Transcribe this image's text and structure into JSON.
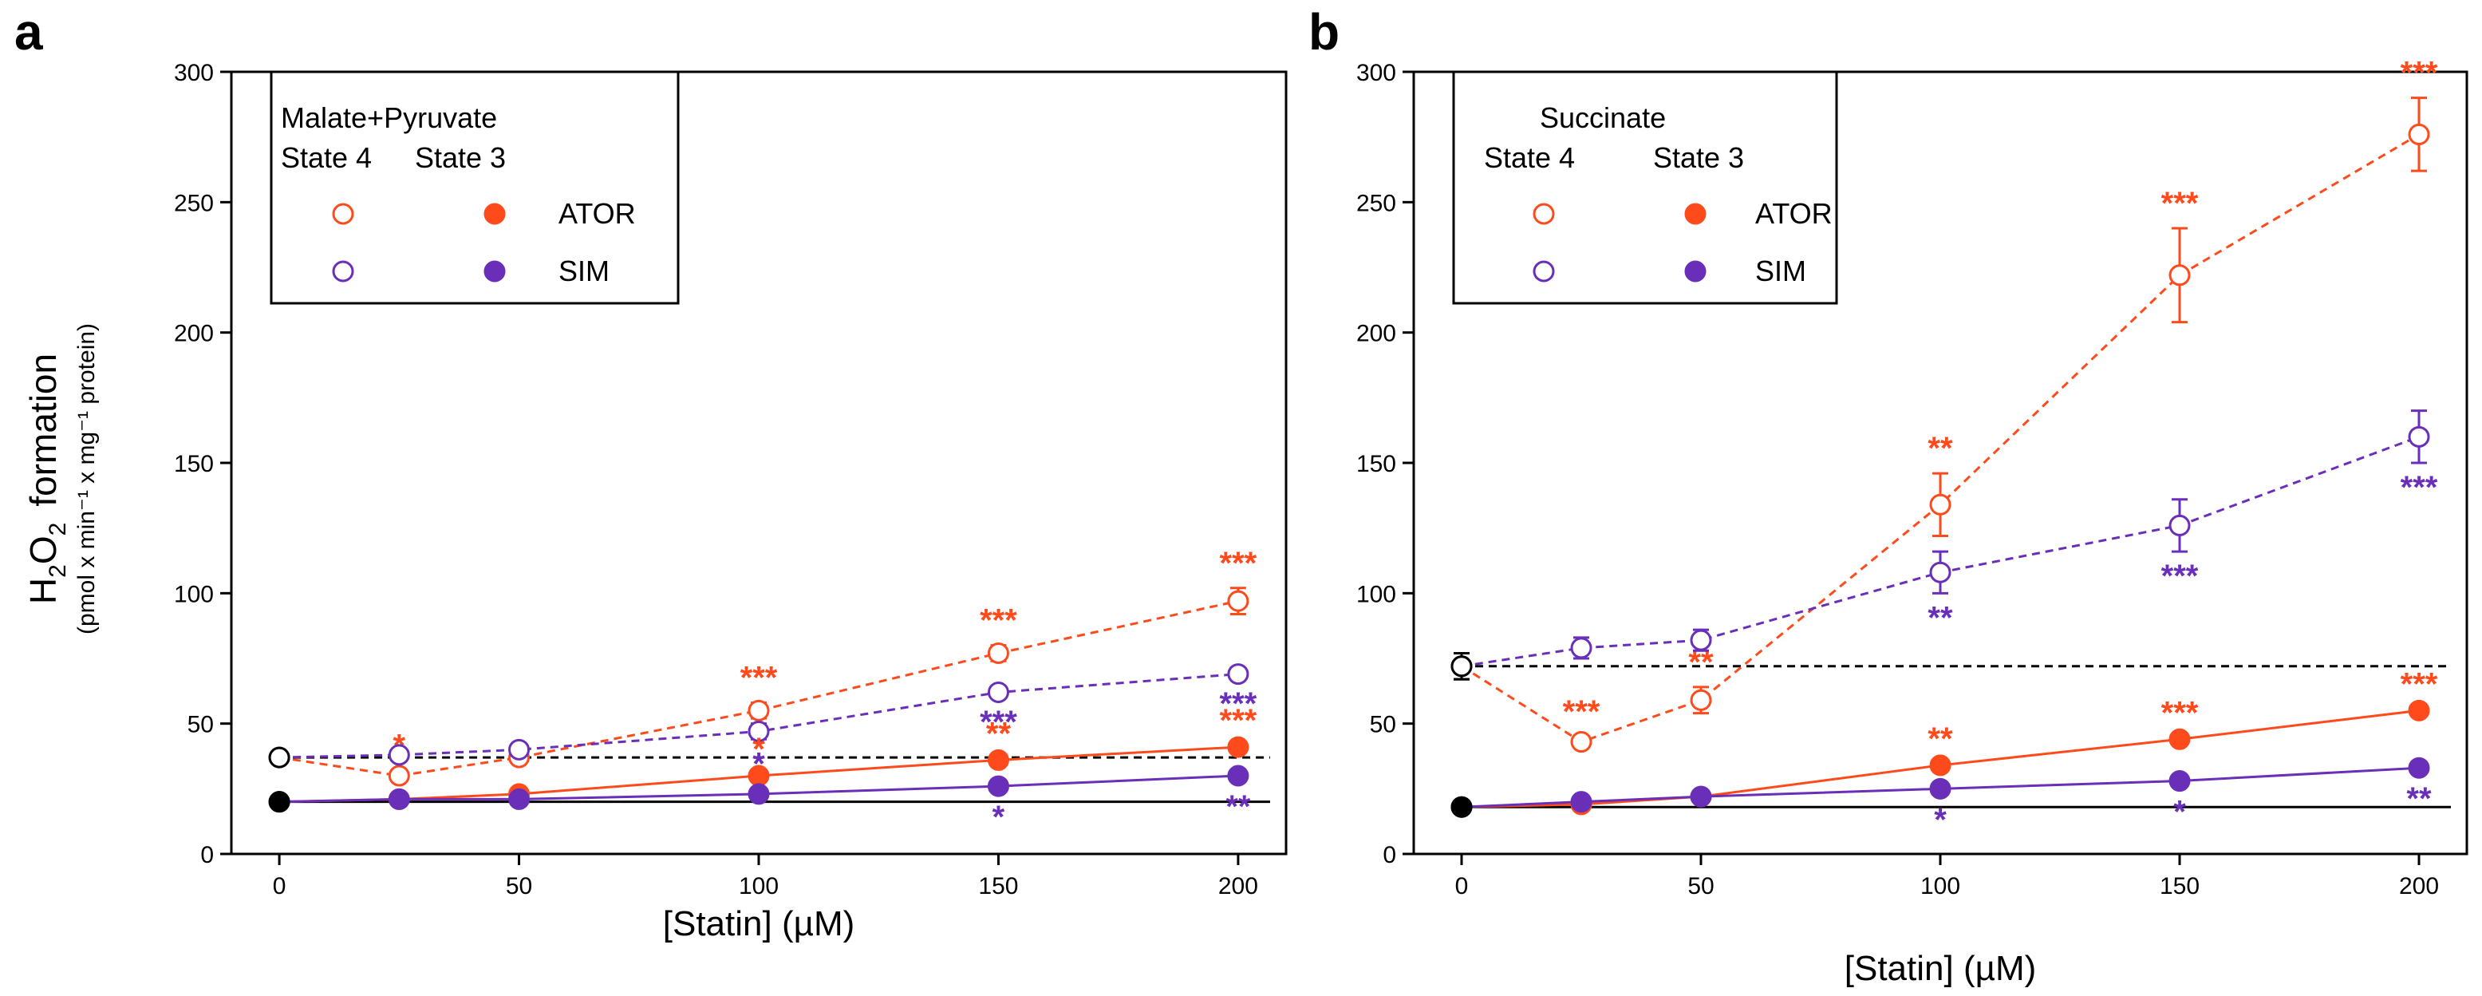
{
  "colors": {
    "ator": "#ff4a1c",
    "sim": "#6a2fb8",
    "control": "#000000"
  },
  "shared_axes": {
    "xlabel": "[Statin] (µM)",
    "ylabel_main_pre": "H",
    "ylabel_main_sub": "2",
    "ylabel_main_mid": "O",
    "ylabel_main_sub2": "2",
    "ylabel_main_post": "formation",
    "ylabel_units": "(pmol x min⁻¹ x mg⁻¹ protein)",
    "xlim": [
      -10,
      210
    ],
    "ylim": [
      0,
      300
    ],
    "xticks": [
      0,
      50,
      100,
      150,
      200
    ],
    "yticks": [
      0,
      50,
      100,
      150,
      200,
      250,
      300
    ]
  },
  "chart_data": [
    {
      "panel": "a",
      "type": "line",
      "legend": {
        "title": "Malate+Pyruvate",
        "col_state4": "State 4",
        "col_state3": "State 3",
        "entry_ator": "ATOR",
        "entry_sim": "SIM"
      },
      "control_state4": 37,
      "control_state3": 20,
      "series": [
        {
          "name": "ATOR State 4",
          "drug": "ator",
          "state": 4,
          "x": [
            0,
            25,
            50,
            100,
            150,
            200
          ],
          "y": [
            37,
            30,
            37,
            55,
            77,
            97
          ],
          "err": [
            2,
            2,
            2,
            3,
            3,
            5
          ],
          "stars": [
            "",
            "*",
            "",
            "***",
            "***",
            "***"
          ]
        },
        {
          "name": "SIM State 4",
          "drug": "sim",
          "state": 4,
          "x": [
            0,
            25,
            50,
            100,
            150,
            200
          ],
          "y": [
            37,
            38,
            40,
            47,
            62,
            69
          ],
          "err": [
            2,
            2,
            2,
            3,
            2,
            2
          ],
          "stars": [
            "",
            "",
            "",
            "*",
            "***",
            "***"
          ]
        },
        {
          "name": "ATOR State 3",
          "drug": "ator",
          "state": 3,
          "x": [
            0,
            25,
            50,
            100,
            150,
            200
          ],
          "y": [
            20,
            21,
            23,
            30,
            36,
            41
          ],
          "err": [
            1,
            1,
            1,
            1,
            1,
            1
          ],
          "stars": [
            "",
            "",
            "",
            "*",
            "**",
            "***"
          ]
        },
        {
          "name": "SIM State 3",
          "drug": "sim",
          "state": 3,
          "x": [
            0,
            25,
            50,
            100,
            150,
            200
          ],
          "y": [
            20,
            21,
            21,
            23,
            26,
            30
          ],
          "err": [
            1,
            1,
            1,
            1,
            1,
            1
          ],
          "stars": [
            "",
            "",
            "",
            "",
            "*",
            "**"
          ]
        }
      ]
    },
    {
      "panel": "b",
      "type": "line",
      "legend": {
        "title": "Succinate",
        "col_state4": "State 4",
        "col_state3": "State 3",
        "entry_ator": "ATOR",
        "entry_sim": "SIM"
      },
      "control_state4": 72,
      "control_state3": 18,
      "series": [
        {
          "name": "ATOR State 4",
          "drug": "ator",
          "state": 4,
          "x": [
            0,
            25,
            50,
            100,
            150,
            200
          ],
          "y": [
            72,
            43,
            59,
            134,
            222,
            276
          ],
          "err": [
            5,
            2,
            5,
            12,
            18,
            14
          ],
          "stars": [
            "",
            "***",
            "**",
            "**",
            "***",
            "***"
          ]
        },
        {
          "name": "SIM State 4",
          "drug": "sim",
          "state": 4,
          "x": [
            0,
            25,
            50,
            100,
            150,
            200
          ],
          "y": [
            72,
            79,
            82,
            108,
            126,
            160
          ],
          "err": [
            5,
            4,
            4,
            8,
            10,
            10
          ],
          "stars": [
            "",
            "",
            "",
            "**",
            "***",
            "***"
          ]
        },
        {
          "name": "ATOR State 3",
          "drug": "ator",
          "state": 3,
          "x": [
            0,
            25,
            50,
            100,
            150,
            200
          ],
          "y": [
            18,
            19,
            22,
            34,
            44,
            55
          ],
          "err": [
            1,
            1,
            1,
            1,
            1,
            1
          ],
          "stars": [
            "",
            "",
            "",
            "**",
            "***",
            "***"
          ]
        },
        {
          "name": "SIM State 3",
          "drug": "sim",
          "state": 3,
          "x": [
            0,
            25,
            50,
            100,
            150,
            200
          ],
          "y": [
            18,
            20,
            22,
            25,
            28,
            33
          ],
          "err": [
            1,
            1,
            1,
            1,
            1,
            1
          ],
          "stars": [
            "",
            "",
            "",
            "*",
            "*",
            "**"
          ]
        }
      ]
    }
  ]
}
